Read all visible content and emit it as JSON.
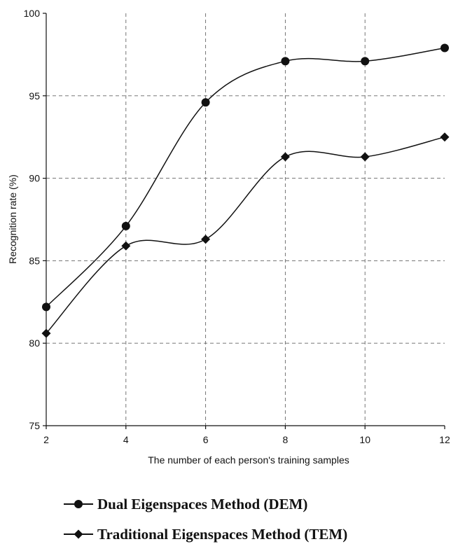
{
  "chart_data": {
    "type": "line",
    "title": "",
    "xlabel": "The number of each person's training samples",
    "ylabel": "Recognition rate (%)",
    "x": [
      2,
      4,
      6,
      8,
      10,
      12
    ],
    "xlim": [
      2,
      12
    ],
    "ylim": [
      75,
      100
    ],
    "x_ticks": [
      "2",
      "4",
      "6",
      "8",
      "10",
      "12"
    ],
    "y_ticks": [
      "75",
      "80",
      "85",
      "90",
      "95",
      "100"
    ],
    "grid": true,
    "smooth": true,
    "legend_position": "bottom",
    "series": [
      {
        "name": "Dual Eigenspaces Method (DEM)",
        "marker": "circle",
        "values": [
          82.2,
          87.1,
          94.6,
          97.1,
          97.1,
          97.9
        ]
      },
      {
        "name": "Traditional Eigenspaces Method (TEM)",
        "marker": "diamond",
        "values": [
          80.6,
          85.9,
          86.3,
          91.3,
          91.3,
          92.5
        ]
      }
    ]
  }
}
